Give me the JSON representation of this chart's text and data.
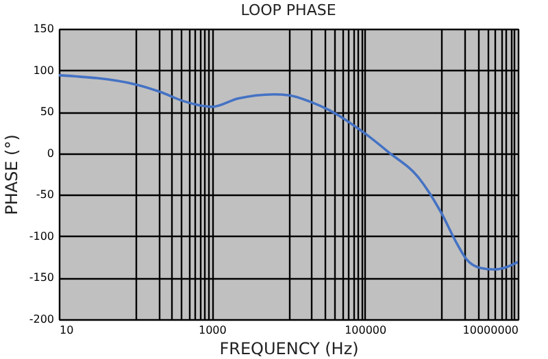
{
  "chart_data": {
    "type": "line",
    "title": "LOOP PHASE",
    "xlabel": "FREQUENCY (Hz)",
    "ylabel": "PHASE (°)",
    "log": "x",
    "grid": true,
    "xlim": [
      10,
      10000000
    ],
    "ylim": [
      -200,
      150
    ],
    "xticks": [
      10,
      {
        "value": 100,
        "label": null
      },
      {
        "value": 200,
        "label": null
      },
      {
        "value": 300,
        "label": null
      },
      {
        "value": 400,
        "label": null
      },
      {
        "value": 500,
        "label": null
      },
      {
        "value": 600,
        "label": null
      },
      {
        "value": 700,
        "label": null
      },
      {
        "value": 800,
        "label": null
      },
      {
        "value": 900,
        "label": null
      },
      1000,
      {
        "value": 10000,
        "label": null
      },
      {
        "value": 20000,
        "label": null
      },
      {
        "value": 30000,
        "label": null
      },
      {
        "value": 40000,
        "label": null
      },
      {
        "value": 50000,
        "label": null
      },
      {
        "value": 60000,
        "label": null
      },
      {
        "value": 70000,
        "label": null
      },
      {
        "value": 80000,
        "label": null
      },
      {
        "value": 90000,
        "label": null
      },
      100000,
      {
        "value": 1000000,
        "label": null
      },
      {
        "value": 2000000,
        "label": null
      },
      {
        "value": 3000000,
        "label": null
      },
      {
        "value": 4000000,
        "label": null
      },
      {
        "value": 5000000,
        "label": null
      },
      {
        "value": 6000000,
        "label": null
      },
      {
        "value": 7000000,
        "label": null
      },
      {
        "value": 8000000,
        "label": null
      },
      {
        "value": 9000000,
        "label": null
      },
      10000000
    ],
    "yticks": [
      -200,
      -150,
      -100,
      -50,
      0,
      50,
      100,
      150
    ],
    "series": [
      {
        "color": "#4472c4",
        "x": [
          10,
          100,
          210,
          420,
          1000,
          2200,
          6500,
          10000,
          19500,
          34000,
          100000,
          200000,
          520000,
          690000,
          1000000,
          1580000,
          2100000,
          3200000,
          4800000,
          7200000,
          10000000
        ],
        "values": [
          94,
          83,
          74,
          63,
          56,
          66,
          71,
          70,
          62,
          52,
          24,
          2,
          -31,
          -47,
          -72,
          -108,
          -127,
          -138,
          -140,
          -137,
          -131
        ]
      }
    ]
  }
}
